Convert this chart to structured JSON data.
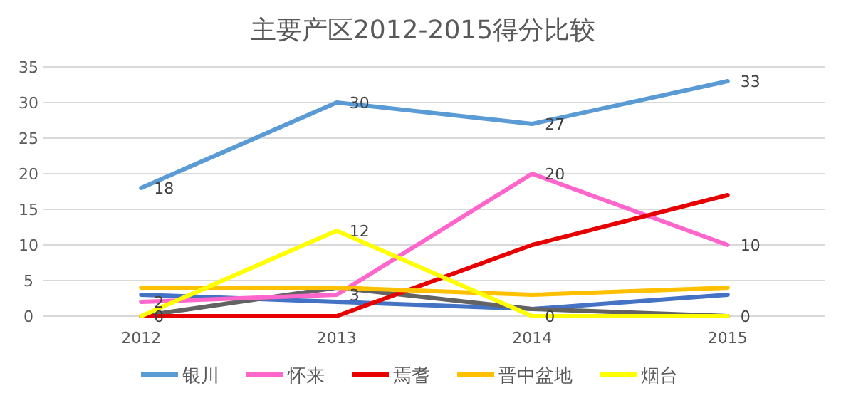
{
  "chart_data": {
    "type": "line",
    "title": "主要产区2012-2015得分比较",
    "categories": [
      "2012",
      "2013",
      "2014",
      "2015"
    ],
    "series": [
      {
        "name": "银川",
        "color": "#5b9bd5",
        "values": [
          18,
          30,
          27,
          33
        ],
        "value_labels": [
          "18",
          "30",
          "27",
          "33"
        ]
      },
      {
        "color": "#4472c4",
        "values": [
          3,
          2,
          1,
          3
        ]
      },
      {
        "color": "#636363",
        "values": [
          0,
          4,
          1,
          0
        ],
        "value_labels": [
          null,
          null,
          null,
          "0"
        ]
      },
      {
        "name": "怀来",
        "color": "#ff66cc",
        "values": [
          2,
          3,
          20,
          10
        ],
        "value_labels": [
          "2",
          "3",
          "20",
          "10"
        ]
      },
      {
        "name": "焉耆",
        "color": "#e60000",
        "values": [
          0,
          0,
          10,
          17
        ],
        "value_labels": [
          "0",
          null,
          null,
          null
        ]
      },
      {
        "name": "晋中盆地",
        "color": "#ffc000",
        "values": [
          4,
          4,
          3,
          4
        ]
      },
      {
        "name": "烟台",
        "color": "#ffff00",
        "values": [
          0,
          12,
          0,
          0
        ],
        "value_labels": [
          null,
          "12",
          "0",
          null
        ]
      }
    ],
    "ylim": [
      0,
      35
    ],
    "yticks": [
      0,
      5,
      10,
      15,
      20,
      25,
      30,
      35
    ],
    "grid": "y",
    "legend": "bottom",
    "marker": "none",
    "line_style": "solid"
  }
}
